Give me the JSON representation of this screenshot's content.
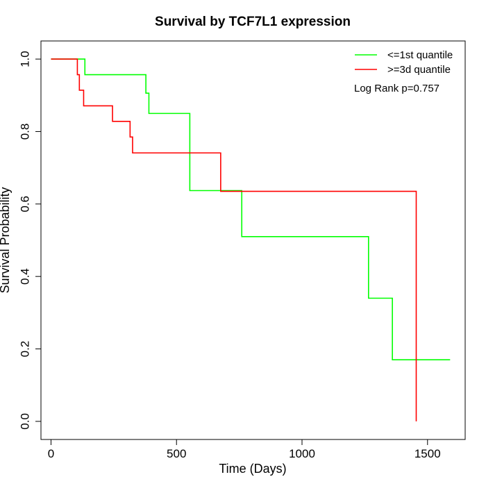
{
  "chart_data": {
    "type": "line",
    "title": "Survival by TCF7L1 expression",
    "xlabel": "Time (Days)",
    "ylabel": "Survival Probability",
    "xlim": [
      -40,
      1650
    ],
    "ylim": [
      -0.05,
      1.05
    ],
    "x_ticks": [
      0,
      500,
      1000,
      1500
    ],
    "y_ticks": [
      0.0,
      0.2,
      0.4,
      0.6,
      0.8,
      1.0
    ],
    "y_tick_labels": [
      "0.0",
      "0.2",
      "0.4",
      "0.6",
      "0.8",
      "1.0"
    ],
    "grid": false,
    "legend_position": "top-right",
    "annotation": "Log Rank p=0.757",
    "series": [
      {
        "name": "<=1st quantile",
        "color": "#00ff00",
        "steps": [
          [
            0,
            1.0
          ],
          [
            135,
            0.957
          ],
          [
            378,
            0.906
          ],
          [
            390,
            0.85
          ],
          [
            553,
            0.637
          ],
          [
            760,
            0.51
          ],
          [
            1265,
            0.34
          ],
          [
            1360,
            0.17
          ],
          [
            1590,
            0.17
          ]
        ]
      },
      {
        "name": ">=3d quantile",
        "color": "#ff0000",
        "steps": [
          [
            0,
            1.0
          ],
          [
            105,
            0.957
          ],
          [
            113,
            0.914
          ],
          [
            130,
            0.871
          ],
          [
            245,
            0.828
          ],
          [
            315,
            0.785
          ],
          [
            325,
            0.741
          ],
          [
            676,
            0.635
          ],
          [
            1455,
            0.0
          ]
        ]
      }
    ]
  }
}
